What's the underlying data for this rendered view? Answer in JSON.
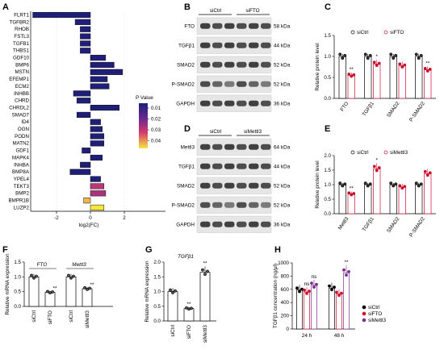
{
  "panel_a": {
    "label": "A",
    "xlabel": "log2(FC)",
    "xticks": [
      "-2",
      "0",
      "2"
    ],
    "legend_title": "P Value",
    "legend_ticks": [
      "0.01",
      "0.02",
      "0.03",
      "0.04"
    ],
    "genes": [
      "FLRT1",
      "TGFBR2",
      "RHOB",
      "FSTL3",
      "TGFB1",
      "THBS1",
      "GDF10",
      "BMP6",
      "MSTN",
      "EFEMP1",
      "ECM2",
      "INHBB",
      "CHRD",
      "CHRDL2",
      "SMAD7",
      "ID4",
      "OGN",
      "PODN",
      "MATN2",
      "GDF1",
      "MAPK4",
      "INHBA",
      "BMP8A",
      "YPEL4",
      "TEKT3",
      "BMP2",
      "BMPR1B",
      "LUZP2"
    ],
    "log2fc": [
      -3.4,
      -0.9,
      -0.6,
      -0.6,
      -0.6,
      -0.6,
      0.9,
      1.4,
      1.9,
      1.0,
      1.1,
      -1.0,
      -0.8,
      1.7,
      -0.8,
      0.6,
      0.7,
      0.8,
      0.8,
      -0.5,
      0.7,
      -0.6,
      -1.2,
      0.6,
      0.8,
      0.9,
      -0.4,
      0.8
    ],
    "pvalue": [
      0.004,
      0.004,
      0.004,
      0.004,
      0.004,
      0.004,
      0.004,
      0.004,
      0.004,
      0.004,
      0.004,
      0.004,
      0.004,
      0.004,
      0.004,
      0.004,
      0.004,
      0.004,
      0.004,
      0.004,
      0.004,
      0.004,
      0.004,
      0.004,
      0.028,
      0.026,
      0.042,
      0.046
    ]
  },
  "panel_b": {
    "label": "B",
    "groups": [
      "siCtrl",
      "siFTO"
    ],
    "rows": [
      {
        "name": "FTO",
        "kda": "58 kDa"
      },
      {
        "name": "TGFβ1",
        "kda": "44 kDa"
      },
      {
        "name": "SMAD2",
        "kda": "52 kDa"
      },
      {
        "name": "P-SMAD2",
        "kda": "52 kDa"
      },
      {
        "name": "GAPDH",
        "kda": "36 kDa"
      }
    ]
  },
  "panel_c": {
    "label": "C",
    "ylabel": "Relative protein level",
    "legend": [
      "siCtrl",
      "siFTO"
    ],
    "categories": [
      "FTO",
      "TGFβ1",
      "SMAD2",
      "P-SMAD2"
    ],
    "ctrl": [
      1.0,
      1.0,
      1.0,
      1.0
    ],
    "treat": [
      0.55,
      0.82,
      0.78,
      0.68
    ],
    "sig": [
      "**",
      "*",
      "",
      "**"
    ],
    "yticks": [
      "0.0",
      "0.5",
      "1.0",
      "1.5"
    ]
  },
  "panel_d": {
    "label": "D",
    "groups": [
      "siCtrl",
      "siMettl3"
    ],
    "rows": [
      {
        "name": "Mettl3",
        "kda": "64 kDa"
      },
      {
        "name": "TGFβ1",
        "kda": "44 kDa"
      },
      {
        "name": "SMAD2",
        "kda": "52 kDa"
      },
      {
        "name": "P-SMAD2",
        "kda": "52 kDa"
      },
      {
        "name": "GAPDH",
        "kda": "36 kDa"
      }
    ]
  },
  "panel_e": {
    "label": "E",
    "ylabel": "Relative protein level",
    "legend": [
      "siCtrl",
      "siMettl3"
    ],
    "categories": [
      "Mettl3",
      "TGFβ1",
      "SMAD2",
      "P-SMAD2"
    ],
    "ctrl": [
      1.0,
      1.0,
      1.0,
      1.0
    ],
    "treat": [
      0.68,
      1.55,
      0.92,
      1.38
    ],
    "sig": [
      "**",
      "*",
      "",
      ""
    ],
    "yticks": [
      "0.0",
      "0.5",
      "1.0",
      "1.5",
      "2.0"
    ]
  },
  "panel_f": {
    "label": "F",
    "ylabel": "Relative mRNA expression",
    "genes": [
      "FTO",
      "Mettl3"
    ],
    "categories": [
      "siCtrl",
      "siFTO",
      "siCtrl",
      "siMettl3"
    ],
    "values": [
      1.0,
      0.48,
      1.0,
      0.6
    ],
    "sig": [
      "",
      "**",
      "",
      "**"
    ],
    "yticks": [
      "0.0",
      "0.5",
      "1.0",
      "1.5"
    ]
  },
  "panel_g": {
    "label": "G",
    "title": "TGFβ1",
    "ylabel": "Relative mRNA expression",
    "categories": [
      "siCtrl",
      "siFTO",
      "siMettl3"
    ],
    "values": [
      1.0,
      0.42,
      1.65
    ],
    "sig": [
      "",
      "**",
      "**"
    ],
    "yticks": [
      "0.0",
      "0.5",
      "1.0",
      "1.5",
      "2.0"
    ]
  },
  "panel_h": {
    "label": "H",
    "ylabel": "TGFβ1 concentration (ng/μl)",
    "legend": [
      "siCtrl",
      "siFTO",
      "siMettl3"
    ],
    "timepoints": [
      "24 h",
      "48 h"
    ],
    "values": [
      [
        590,
        560,
        660
      ],
      [
        620,
        530,
        850
      ]
    ],
    "sig": [
      [
        "",
        "ns",
        "ns"
      ],
      [
        "",
        "",
        "**"
      ]
    ],
    "yticks": [
      "0",
      "200",
      "400",
      "600",
      "800",
      "1000"
    ]
  }
}
